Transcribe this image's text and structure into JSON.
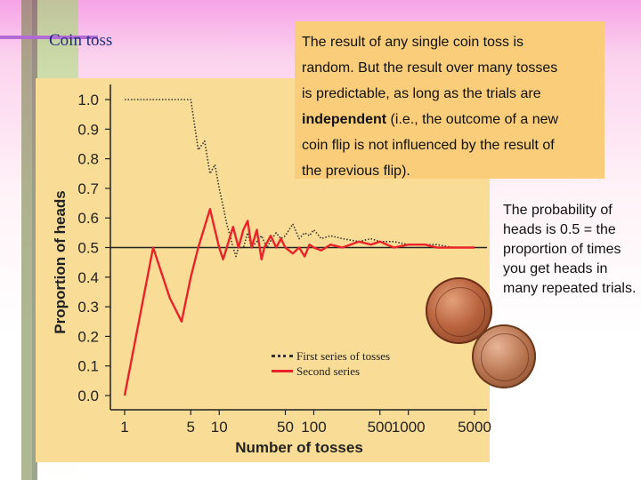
{
  "slide": {
    "title": "Coin toss"
  },
  "callout": {
    "line1": "The result of any single coin toss is",
    "line2": "random.  But the result over many tosses",
    "line3": "is predictable, as long as the trials are",
    "bold_word": "independent",
    "line4_rest": " (i.e., the outcome of a new",
    "line5": "coin flip is not influenced by the result of",
    "line6": "the previous flip)."
  },
  "probability_note": "The probability of heads is 0.5 = the proportion of times you get heads in many repeated trials.",
  "chart_data": {
    "type": "line",
    "xscale": "log",
    "xlabel": "Number of tosses",
    "ylabel": "Proportion of heads",
    "ylim": [
      0.0,
      1.0
    ],
    "xlim": [
      1,
      5000
    ],
    "xticks": [
      1,
      5,
      10,
      50,
      100,
      500,
      1000,
      5000
    ],
    "xtick_labels": [
      "1",
      "5",
      "10",
      "50",
      "100",
      "500",
      "1000",
      "5000"
    ],
    "yticks": [
      0.0,
      0.1,
      0.2,
      0.3,
      0.4,
      0.5,
      0.6,
      0.7,
      0.8,
      0.9,
      1.0
    ],
    "ytick_labels": [
      "0.0",
      "0.1",
      "0.2",
      "0.3",
      "0.4",
      "0.5",
      "0.6",
      "0.7",
      "0.8",
      "0.9",
      "1.0"
    ],
    "reference_line": 0.5,
    "series": [
      {
        "name": "First series of tosses",
        "style": "dotted",
        "color": "#333333",
        "x": [
          1,
          2,
          3,
          4,
          5,
          6,
          7,
          8,
          9,
          10,
          11,
          12,
          13,
          14,
          15,
          16,
          18,
          20,
          22,
          25,
          28,
          32,
          36,
          40,
          45,
          50,
          60,
          70,
          80,
          90,
          100,
          120,
          150,
          200,
          300,
          400,
          500,
          700,
          1000,
          1500,
          2000,
          3000,
          4000,
          5000
        ],
        "y": [
          1.0,
          1.0,
          1.0,
          1.0,
          1.0,
          0.83,
          0.86,
          0.75,
          0.78,
          0.7,
          0.64,
          0.58,
          0.54,
          0.5,
          0.47,
          0.5,
          0.5,
          0.55,
          0.5,
          0.52,
          0.54,
          0.5,
          0.53,
          0.55,
          0.53,
          0.54,
          0.58,
          0.53,
          0.55,
          0.54,
          0.56,
          0.53,
          0.54,
          0.53,
          0.52,
          0.53,
          0.52,
          0.52,
          0.51,
          0.51,
          0.51,
          0.5,
          0.5,
          0.5
        ]
      },
      {
        "name": "Second series",
        "style": "solid",
        "color": "#e8232a",
        "x": [
          1,
          2,
          3,
          4,
          5,
          6,
          7,
          8,
          9,
          10,
          11,
          12,
          14,
          16,
          18,
          20,
          22,
          25,
          28,
          30,
          35,
          40,
          45,
          50,
          60,
          70,
          80,
          90,
          100,
          120,
          150,
          200,
          300,
          400,
          500,
          700,
          1000,
          1500,
          2000,
          3000,
          4000,
          5000
        ],
        "y": [
          0.0,
          0.5,
          0.33,
          0.25,
          0.4,
          0.5,
          0.57,
          0.63,
          0.56,
          0.5,
          0.46,
          0.5,
          0.57,
          0.5,
          0.56,
          0.59,
          0.5,
          0.56,
          0.46,
          0.5,
          0.54,
          0.5,
          0.53,
          0.5,
          0.48,
          0.5,
          0.47,
          0.51,
          0.5,
          0.49,
          0.51,
          0.5,
          0.52,
          0.51,
          0.52,
          0.5,
          0.51,
          0.51,
          0.5,
          0.5,
          0.5,
          0.5
        ]
      }
    ]
  }
}
